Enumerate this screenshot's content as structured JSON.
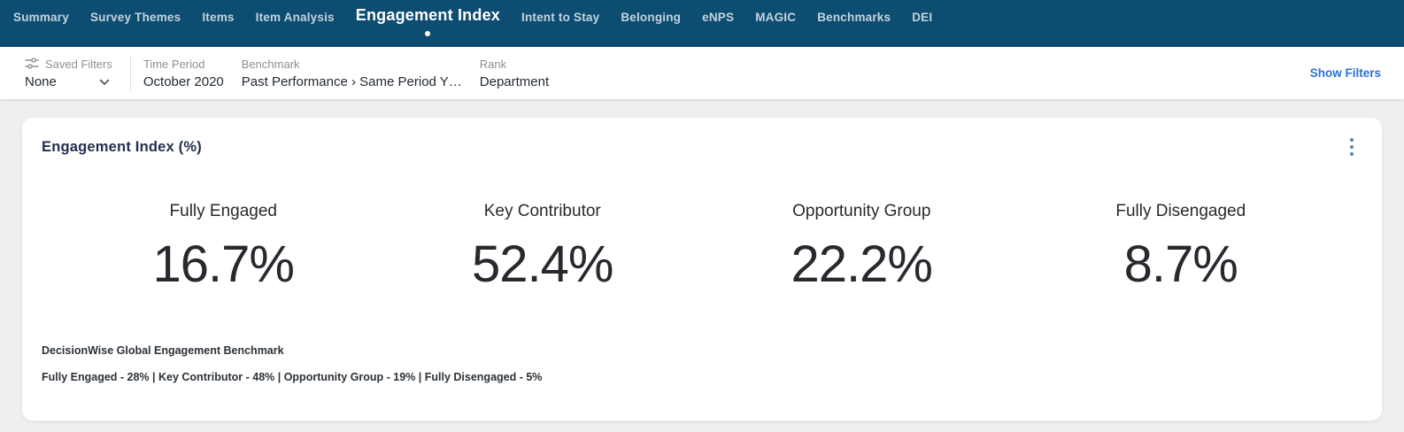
{
  "nav": {
    "items": [
      {
        "label": "Summary",
        "active": false
      },
      {
        "label": "Survey Themes",
        "active": false
      },
      {
        "label": "Items",
        "active": false
      },
      {
        "label": "Item Analysis",
        "active": false
      },
      {
        "label": "Engagement Index",
        "active": true
      },
      {
        "label": "Intent to Stay",
        "active": false
      },
      {
        "label": "Belonging",
        "active": false
      },
      {
        "label": "eNPS",
        "active": false
      },
      {
        "label": "MAGIC",
        "active": false
      },
      {
        "label": "Benchmarks",
        "active": false
      },
      {
        "label": "DEI",
        "active": false
      }
    ]
  },
  "filters": {
    "saved_filters": {
      "label": "Saved Filters",
      "value": "None",
      "icon": "sliders-icon",
      "dropdown_icon": "chevron-down-icon"
    },
    "groups": [
      {
        "label": "Time Period",
        "value": "October 2020"
      },
      {
        "label": "Benchmark",
        "value": "Past Performance › Same Period Y…"
      },
      {
        "label": "Rank",
        "value": "Department"
      }
    ],
    "show_filters_label": "Show Filters"
  },
  "card": {
    "title": "Engagement Index (%)",
    "menu_icon": "kebab-menu-icon",
    "benchmark_title": "DecisionWise Global Engagement Benchmark",
    "benchmark_detail": "Fully Engaged - 28% | Key Contributor - 48% | Opportunity Group - 19% | Fully Disengaged - 5%"
  },
  "metrics": [
    {
      "label": "Fully Engaged",
      "value": "16.7%"
    },
    {
      "label": "Key Contributor",
      "value": "52.4%"
    },
    {
      "label": "Opportunity Group",
      "value": "22.2%"
    },
    {
      "label": "Fully Disengaged",
      "value": "8.7%"
    }
  ],
  "colors": {
    "nav_bg": "#0d4d72",
    "nav_text": "#c3d3dd",
    "nav_active_text": "#ffffff",
    "link_blue": "#2a6fdb",
    "label_gray": "#8a9199",
    "value_dark": "#1f2831",
    "title_navy": "#223050",
    "metric_dark": "#26292d",
    "kebab": "#5c80a5",
    "page_bg": "#edeff1",
    "divider": "#dcdfe2"
  }
}
